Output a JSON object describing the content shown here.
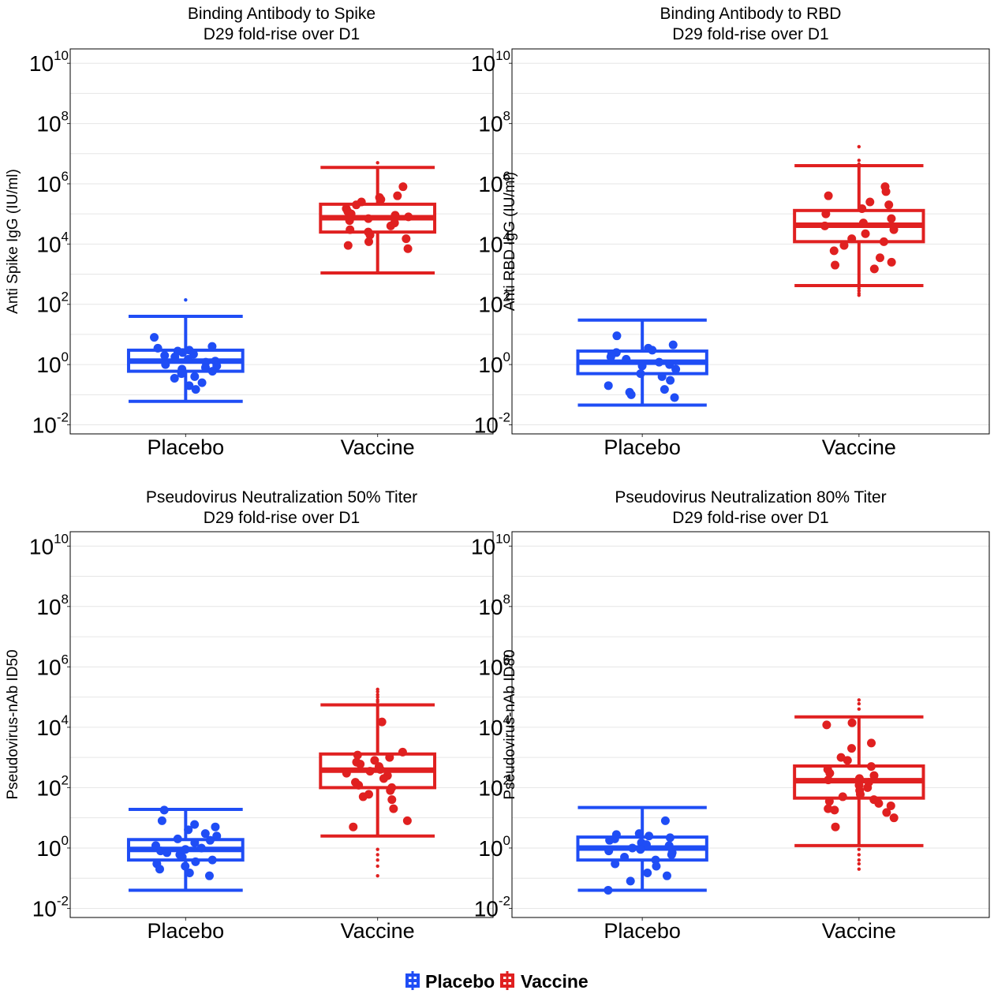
{
  "chart_data": [
    {
      "type": "box",
      "title": [
        "Binding Antibody to Spike",
        "D29 fold-rise over D1"
      ],
      "ylabel": "Anti Spike IgG (IU/ml)",
      "yscale": "log10",
      "ylim": [
        0.005,
        30000000000
      ],
      "yticks": [
        0.01,
        1,
        100,
        10000,
        1000000,
        100000000,
        10000000000
      ],
      "categories": [
        "Placebo",
        "Vaccine"
      ],
      "grid": true,
      "boxes": [
        {
          "group": "Placebo",
          "color": "#1F4DF5",
          "whisker_low": 0.06,
          "q1": 0.6,
          "median": 1.3,
          "q3": 3.0,
          "whisker_high": 40,
          "points": [
            8,
            4,
            3.5,
            3,
            2.8,
            2.5,
            2.2,
            2,
            1.8,
            1.5,
            1.3,
            1.2,
            1,
            0.9,
            0.8,
            0.7,
            0.6,
            0.5,
            0.4,
            0.35,
            0.25,
            0.2,
            0.15
          ],
          "outliers": [
            140
          ]
        },
        {
          "group": "Vaccine",
          "color": "#E02020",
          "whisker_low": 1100,
          "q1": 25000,
          "median": 75000,
          "q3": 210000,
          "whisker_high": 3500000,
          "points": [
            800000,
            400000,
            350000,
            300000,
            250000,
            200000,
            150000,
            120000,
            100000,
            90000,
            80000,
            70000,
            60000,
            50000,
            40000,
            30000,
            25000,
            20000,
            15000,
            12000,
            9000,
            7000
          ],
          "outliers": [
            5000000
          ]
        }
      ]
    },
    {
      "type": "box",
      "title": [
        "Binding Antibody to RBD",
        "D29 fold-rise over D1"
      ],
      "ylabel": "Anti RBD IgG (IU/ml)",
      "yscale": "log10",
      "ylim": [
        0.005,
        30000000000
      ],
      "yticks": [
        0.01,
        1,
        100,
        10000,
        1000000,
        100000000,
        10000000000
      ],
      "categories": [
        "Placebo",
        "Vaccine"
      ],
      "grid": true,
      "boxes": [
        {
          "group": "Placebo",
          "color": "#1F4DF5",
          "whisker_low": 0.045,
          "q1": 0.5,
          "median": 1.2,
          "q3": 2.8,
          "whisker_high": 30,
          "points": [
            9,
            4.5,
            3.5,
            3,
            2.5,
            2.2,
            1.8,
            1.5,
            1.2,
            1,
            0.9,
            0.7,
            0.5,
            0.4,
            0.3,
            0.2,
            0.15,
            0.12,
            0.1,
            0.08
          ],
          "outliers": []
        },
        {
          "group": "Vaccine",
          "color": "#E02020",
          "whisker_low": 420,
          "q1": 12000,
          "median": 42000,
          "q3": 130000,
          "whisker_high": 4000000,
          "points": [
            800000,
            550000,
            400000,
            250000,
            200000,
            150000,
            100000,
            70000,
            50000,
            40000,
            30000,
            22000,
            15000,
            12000,
            9000,
            6000,
            3500,
            2500,
            2000,
            1500
          ],
          "outliers": [
            17000000,
            6000000,
            4500000,
            340,
            280,
            230,
            200
          ]
        }
      ]
    },
    {
      "type": "box",
      "title": [
        "Pseudovirus Neutralization 50% Titer",
        "D29 fold-rise over D1"
      ],
      "ylabel": "Pseudovirus-nAb ID50",
      "yscale": "log10",
      "ylim": [
        0.005,
        30000000000
      ],
      "yticks": [
        0.01,
        1,
        100,
        10000,
        1000000,
        100000000,
        10000000000
      ],
      "categories": [
        "Placebo",
        "Vaccine"
      ],
      "grid": true,
      "boxes": [
        {
          "group": "Placebo",
          "color": "#1F4DF5",
          "whisker_low": 0.04,
          "q1": 0.4,
          "median": 0.9,
          "q3": 1.9,
          "whisker_high": 19,
          "points": [
            18,
            8,
            6,
            5,
            4,
            3,
            2.5,
            2,
            1.8,
            1.5,
            1.2,
            1,
            0.9,
            0.8,
            0.7,
            0.6,
            0.5,
            0.4,
            0.35,
            0.3,
            0.25,
            0.2,
            0.15,
            0.12
          ],
          "outliers": []
        },
        {
          "group": "Vaccine",
          "color": "#E02020",
          "whisker_low": 2.5,
          "q1": 100,
          "median": 380,
          "q3": 1300,
          "whisker_high": 55000,
          "points": [
            15000,
            1500,
            1200,
            1000,
            800,
            700,
            600,
            500,
            400,
            350,
            300,
            250,
            200,
            150,
            120,
            100,
            80,
            60,
            50,
            40,
            20,
            8,
            5
          ],
          "outliers": [
            180000,
            150000,
            120000,
            100000,
            80000,
            70000,
            0.9,
            0.6,
            0.4,
            0.25,
            0.12
          ]
        }
      ]
    },
    {
      "type": "box",
      "title": [
        "Pseudovirus Neutralization 80% Titer",
        "D29 fold-rise over D1"
      ],
      "ylabel": "Pseudovirus-nAb ID80",
      "yscale": "log10",
      "ylim": [
        0.005,
        30000000000
      ],
      "yticks": [
        0.01,
        1,
        100,
        10000,
        1000000,
        100000000,
        10000000000
      ],
      "categories": [
        "Placebo",
        "Vaccine"
      ],
      "grid": true,
      "boxes": [
        {
          "group": "Placebo",
          "color": "#1F4DF5",
          "whisker_low": 0.04,
          "q1": 0.4,
          "median": 1.0,
          "q3": 2.3,
          "whisker_high": 22,
          "points": [
            8,
            3,
            2.8,
            2.5,
            2.2,
            2,
            1.8,
            1.5,
            1.3,
            1.2,
            1,
            0.9,
            0.8,
            0.7,
            0.6,
            0.5,
            0.4,
            0.3,
            0.25,
            0.15,
            0.12,
            0.08,
            0.04
          ],
          "outliers": []
        },
        {
          "group": "Vaccine",
          "color": "#E02020",
          "whisker_low": 1.2,
          "q1": 45,
          "median": 170,
          "q3": 520,
          "whisker_high": 22000,
          "points": [
            14000,
            12000,
            3000,
            2000,
            1000,
            800,
            500,
            400,
            300,
            250,
            200,
            180,
            150,
            120,
            100,
            80,
            60,
            50,
            40,
            35,
            30,
            25,
            20,
            18,
            15,
            10,
            5
          ],
          "outliers": [
            80000,
            60000,
            40000,
            0.9,
            0.6,
            0.4,
            0.3,
            0.2
          ]
        }
      ]
    }
  ],
  "legend": {
    "position": "bottom",
    "items": [
      {
        "label": "Placebo",
        "color": "#1F4DF5"
      },
      {
        "label": "Vaccine",
        "color": "#E02020"
      }
    ]
  }
}
